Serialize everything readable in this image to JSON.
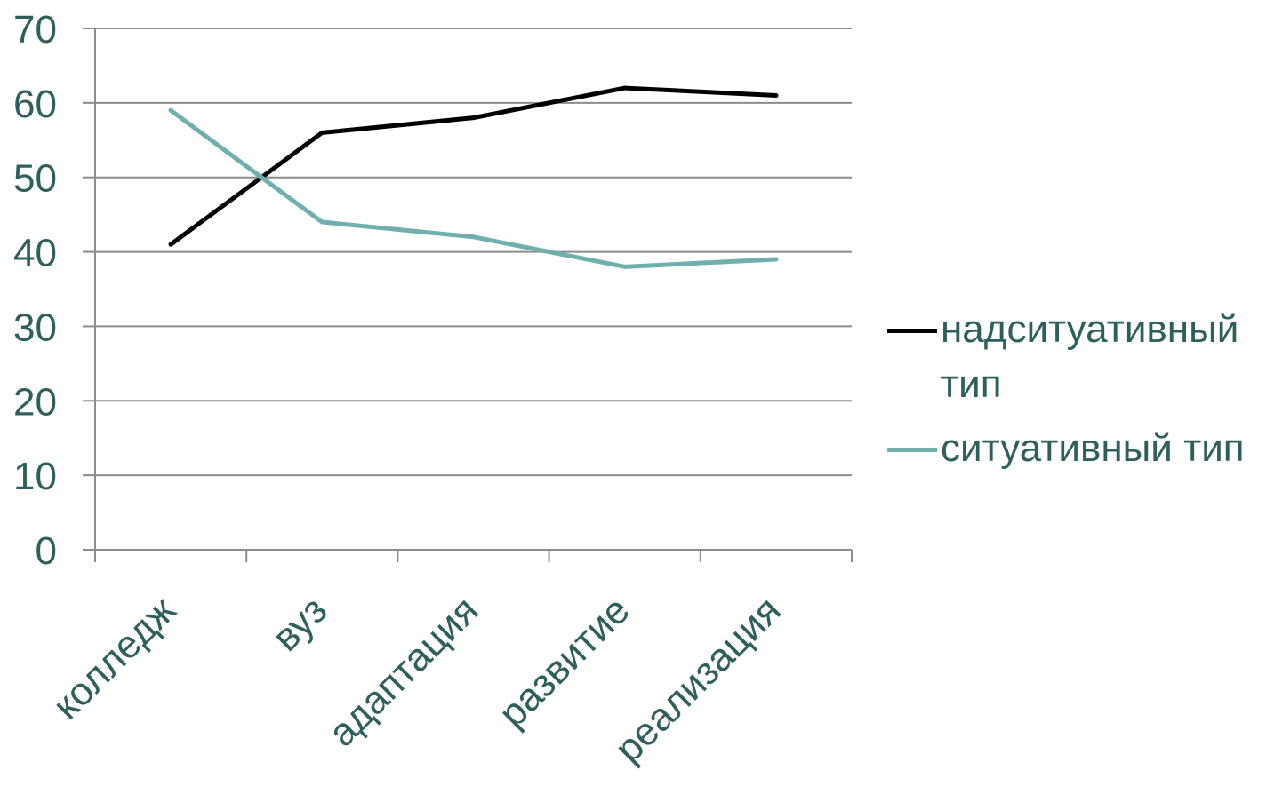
{
  "chart_data": {
    "type": "line",
    "categories": [
      "колледж",
      "вуз",
      "адаптация",
      "развитие",
      "реализация"
    ],
    "series": [
      {
        "name": "надситуативный тип",
        "values": [
          41,
          56,
          58,
          62,
          61
        ],
        "color": "#000000"
      },
      {
        "name": "ситуативный тип",
        "values": [
          59,
          44,
          42,
          38,
          39
        ],
        "color": "#6fb0ae"
      }
    ],
    "ylim": [
      0,
      70
    ],
    "yticks": [
      0,
      10,
      20,
      30,
      40,
      50,
      60,
      70
    ],
    "grid": true,
    "legend_position": "right",
    "text_color": "#2f5f5c",
    "grid_color": "#8c8c8c"
  }
}
